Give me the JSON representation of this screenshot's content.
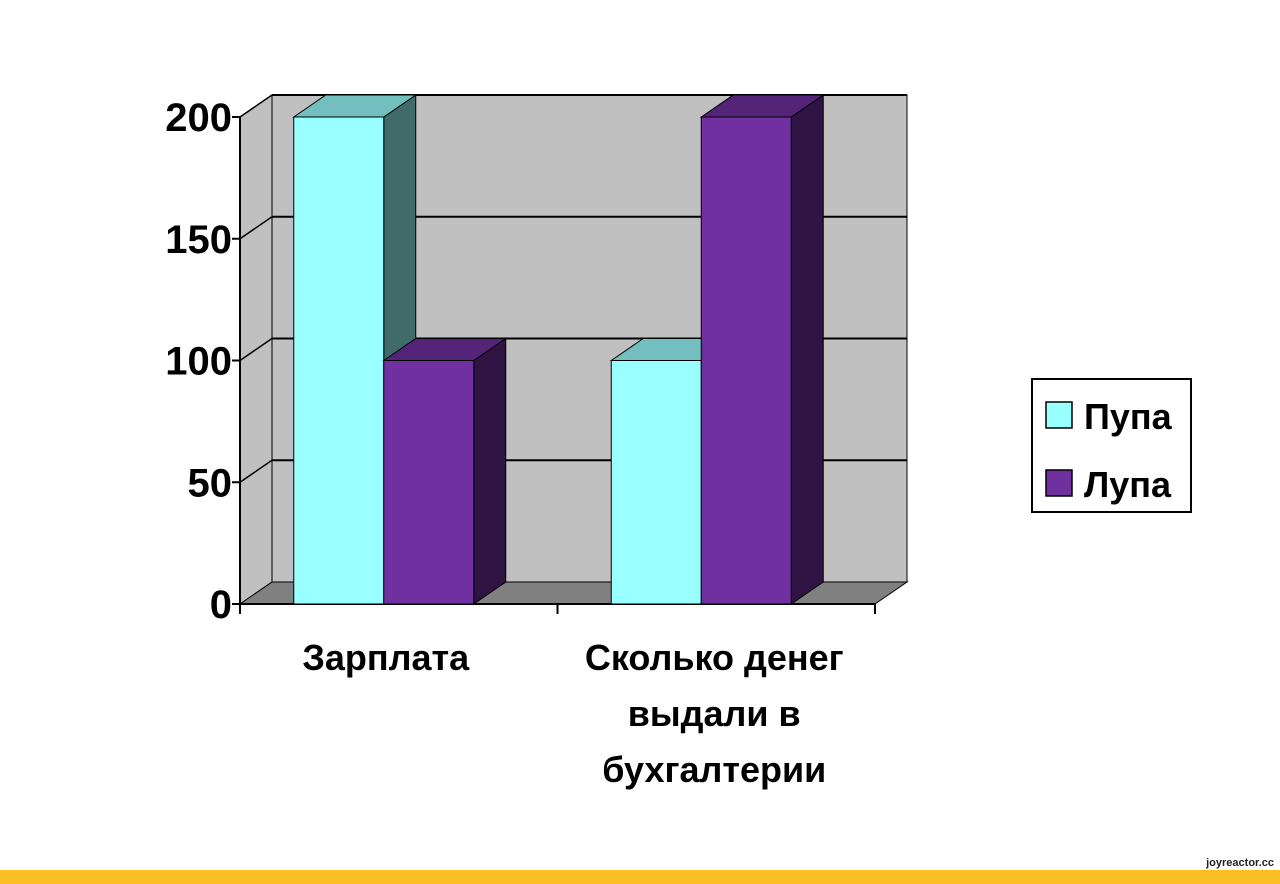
{
  "chart_data": {
    "type": "bar",
    "categories": [
      [
        "Зарплата"
      ],
      [
        "Сколько денег",
        "выдали в",
        "бухгалтерии"
      ]
    ],
    "series": [
      {
        "name": "Пупа",
        "values": [
          200,
          100
        ],
        "color": "#99ffff"
      },
      {
        "name": "Лупа",
        "values": [
          100,
          200
        ],
        "color": "#7030a0"
      }
    ],
    "ylim": [
      0,
      200
    ],
    "yticks": [
      0,
      50,
      100,
      150,
      200
    ],
    "grid": true,
    "legend_position": "right",
    "three_d": true,
    "wall_color": "#c0c0c0",
    "floor_color": "#808080"
  },
  "watermark": "joyreactor.cc"
}
